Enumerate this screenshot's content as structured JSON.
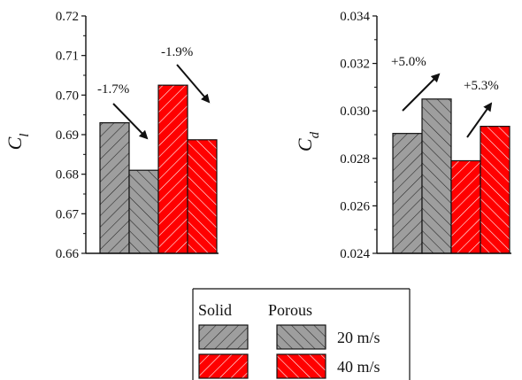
{
  "chart_data": [
    {
      "type": "bar",
      "ylabel": "C",
      "ylabel_sub": "l",
      "ylim": [
        0.66,
        0.72
      ],
      "yticks": [
        0.66,
        0.67,
        0.68,
        0.69,
        0.7,
        0.71,
        0.72
      ],
      "ytick_labels": [
        "0.66",
        "0.67",
        "0.68",
        "0.69",
        "0.70",
        "0.71",
        "0.72"
      ],
      "bars": [
        {
          "series": "Solid 20 m/s",
          "value": 0.693
        },
        {
          "series": "Porous 20 m/s",
          "value": 0.681
        },
        {
          "series": "Solid 40 m/s",
          "value": 0.7025
        },
        {
          "series": "Porous 40 m/s",
          "value": 0.6887
        }
      ],
      "annotations": [
        {
          "text": "-1.7%",
          "direction": "down"
        },
        {
          "text": "-1.9%",
          "direction": "down"
        }
      ]
    },
    {
      "type": "bar",
      "ylabel": "C",
      "ylabel_sub": "d",
      "ylim": [
        0.024,
        0.034
      ],
      "yticks": [
        0.024,
        0.026,
        0.028,
        0.03,
        0.032,
        0.034
      ],
      "ytick_labels": [
        "0.024",
        "0.026",
        "0.028",
        "0.030",
        "0.032",
        "0.034"
      ],
      "bars": [
        {
          "series": "Solid 20 m/s",
          "value": 0.02905
        },
        {
          "series": "Porous 20 m/s",
          "value": 0.0305
        },
        {
          "series": "Solid 40 m/s",
          "value": 0.0279
        },
        {
          "series": "Porous 40 m/s",
          "value": 0.02935
        }
      ],
      "annotations": [
        {
          "text": "+5.0%",
          "direction": "up"
        },
        {
          "text": "+5.3%",
          "direction": "up"
        }
      ]
    }
  ],
  "legend": {
    "headers": [
      "Solid",
      "Porous"
    ],
    "rows": [
      {
        "label": "20 m/s",
        "color": "#9e9e9e"
      },
      {
        "label": "40 m/s",
        "color": "#ff0000"
      }
    ]
  },
  "colors": {
    "gray": "#9e9e9e",
    "red": "#ff0000",
    "hatch": "#222222"
  }
}
